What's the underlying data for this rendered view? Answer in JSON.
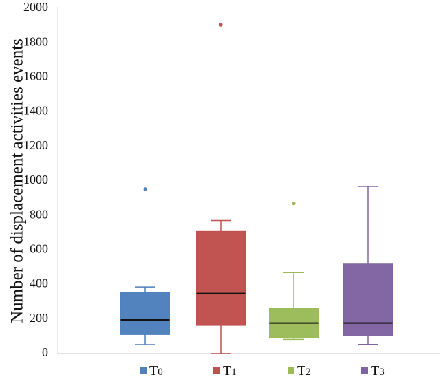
{
  "chart_data": {
    "type": "box",
    "title": "",
    "xlabel": "",
    "ylabel": "Number of displacement activities events",
    "ylim": [
      0,
      2000
    ],
    "yticks": [
      0,
      200,
      400,
      600,
      800,
      1000,
      1200,
      1400,
      1600,
      1800,
      2000
    ],
    "grid": false,
    "legend_position": "bottom",
    "categories": [
      "T0",
      "T1",
      "T2",
      "T3"
    ],
    "series": [
      {
        "name": "T0",
        "color": "#4f81bd",
        "whisker_low": 52,
        "q1": 110,
        "median": 195,
        "q3": 356,
        "whisker_high": 386,
        "outliers": [
          953
        ]
      },
      {
        "name": "T1",
        "color": "#c0504d",
        "whisker_low": 0,
        "q1": 163,
        "median": 348,
        "q3": 708,
        "whisker_high": 771,
        "outliers": [
          1904
        ]
      },
      {
        "name": "T2",
        "color": "#9bbb59",
        "whisker_low": 82,
        "q1": 92,
        "median": 177,
        "q3": 264,
        "whisker_high": 469,
        "outliers": [
          870
        ]
      },
      {
        "name": "T3",
        "color": "#8064a2",
        "whisker_low": 53,
        "q1": 102,
        "median": 177,
        "q3": 519,
        "whisker_high": 968,
        "outliers": []
      }
    ]
  },
  "legend": [
    {
      "main": "T",
      "sub": "0",
      "color": "#4f81bd"
    },
    {
      "main": "T",
      "sub": "1",
      "color": "#c0504d"
    },
    {
      "main": "T",
      "sub": "2",
      "color": "#9bbb59"
    },
    {
      "main": "T",
      "sub": "3",
      "color": "#8064a2"
    }
  ]
}
